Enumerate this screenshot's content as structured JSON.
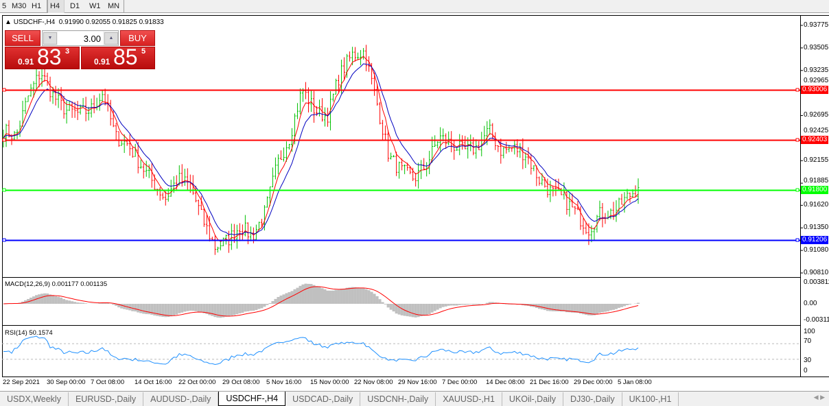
{
  "toolbar": {
    "timeframes": [
      {
        "label": "5"
      },
      {
        "label": "M30"
      },
      {
        "label": "H1"
      },
      {
        "label": "H4",
        "active": true
      },
      {
        "label": "D1"
      },
      {
        "label": "W1"
      },
      {
        "label": "MN"
      }
    ]
  },
  "symbol_info": "USDCHF-,H4  0.91990 0.92055 0.91825 0.91833",
  "trade_panel": {
    "sell_label": "SELL",
    "buy_label": "BUY",
    "lot": "3.00",
    "sell_prefix": "0.91",
    "sell_big": "83",
    "sell_sup": "3",
    "buy_prefix": "0.91",
    "buy_big": "85",
    "buy_sup": "5"
  },
  "price_scale": [
    "0.93775",
    "0.93505",
    "0.93235",
    "0.92965",
    "0.92695",
    "0.92425",
    "0.92155",
    "0.91885",
    "0.91620",
    "0.91350",
    "0.91080",
    "0.90810"
  ],
  "horizontal_lines": [
    {
      "price": "0.93006",
      "color": "#ff0000"
    },
    {
      "price": "0.92403",
      "color": "#ff0000"
    },
    {
      "price": "0.91800",
      "color": "#00ff00"
    },
    {
      "price": "0.91206",
      "color": "#0000ff"
    }
  ],
  "macd": {
    "label": "MACD(12,26,9) 0.001177 0.001135",
    "scale": [
      "0.003811",
      "0.00",
      "-0.003115"
    ]
  },
  "rsi": {
    "label": "RSI(14) 50.1574",
    "scale": [
      "100",
      "70",
      "30",
      "0"
    ]
  },
  "x_labels": [
    "22 Sep 2021",
    "30 Sep 00:00",
    "7 Oct 08:00",
    "14 Oct 16:00",
    "22 Oct 00:00",
    "29 Oct 08:00",
    "5 Nov 16:00",
    "15 Nov 00:00",
    "22 Nov 08:00",
    "29 Nov 16:00",
    "7 Dec 00:00",
    "14 Dec 08:00",
    "21 Dec 16:00",
    "29 Dec 00:00",
    "5 Jan 08:00"
  ],
  "tabs": [
    {
      "label": "USDX,Weekly"
    },
    {
      "label": "EURUSD-,Daily"
    },
    {
      "label": "AUDUSD-,Daily"
    },
    {
      "label": "USDCHF-,H4",
      "active": true
    },
    {
      "label": "USDCAD-,Daily"
    },
    {
      "label": "USDCNH-,Daily"
    },
    {
      "label": "XAUUSD-,H1"
    },
    {
      "label": "UKOil-,Daily"
    },
    {
      "label": "DJ30-,Daily"
    },
    {
      "label": "UK100-,H1"
    }
  ],
  "colors": {
    "bull": "#00c000",
    "bear": "#ff0000",
    "ma_fast": "#ff0000",
    "ma_slow": "#0000c0",
    "macd_hist": "#c0c0c0",
    "rsi": "#1e90ff"
  },
  "chart_data": {
    "type": "ohlc",
    "symbol": "USDCHF-",
    "timeframe": "H4",
    "ylim": [
      0.9081,
      0.93775
    ],
    "approx_closes": [
      0.9252,
      0.9244,
      0.9293,
      0.9322,
      0.9293,
      0.9276,
      0.9272,
      0.9276,
      0.9297,
      0.9244,
      0.9235,
      0.9211,
      0.919,
      0.917,
      0.9194,
      0.9186,
      0.9145,
      0.9112,
      0.912,
      0.9137,
      0.9125,
      0.9153,
      0.9211,
      0.9244,
      0.9301,
      0.9276,
      0.9268,
      0.9318,
      0.9342,
      0.9346,
      0.9285,
      0.9219,
      0.9203,
      0.9194,
      0.9211,
      0.9244,
      0.9235,
      0.9227,
      0.9231,
      0.9252,
      0.9227,
      0.9231,
      0.9223,
      0.9194,
      0.9178,
      0.917,
      0.9153,
      0.9133,
      0.9153,
      0.9153,
      0.917,
      0.91833
    ]
  }
}
